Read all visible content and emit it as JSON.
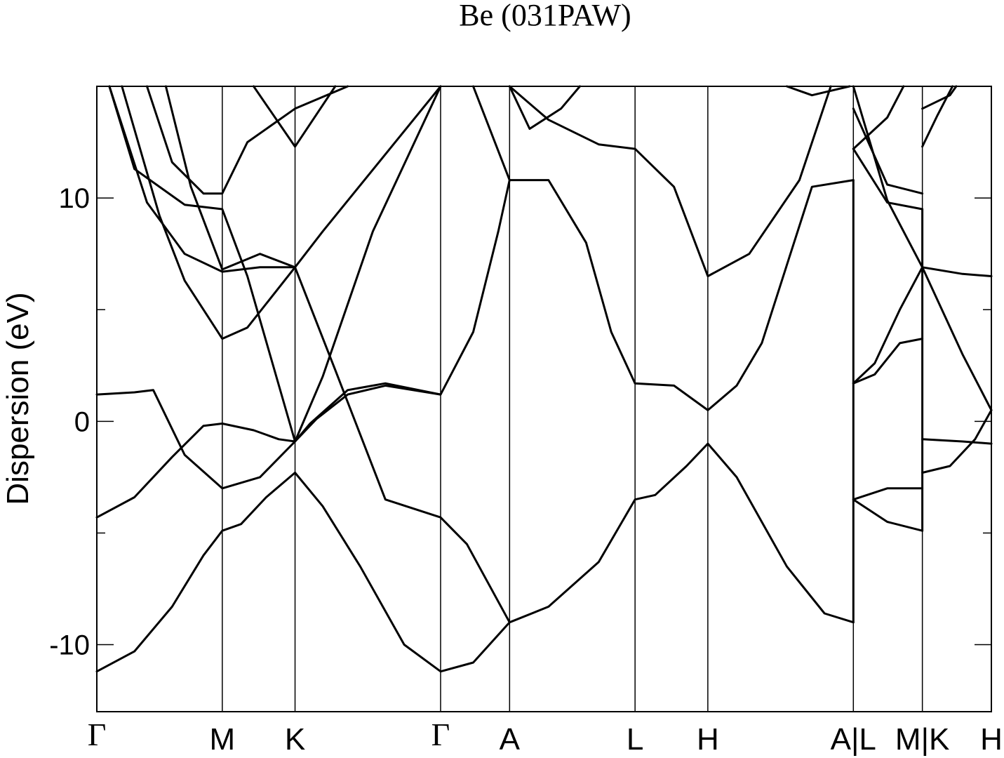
{
  "chart_data": {
    "type": "line",
    "title": "Be (031PAW)",
    "ylabel": "Dispersion (eV)",
    "xlabel": "",
    "ylim": [
      -13,
      15
    ],
    "yticks": [
      -10,
      0,
      10
    ],
    "grid": false,
    "kpoints": [
      {
        "label": "Γ",
        "x": 0
      },
      {
        "label": "M",
        "x": 1.0
      },
      {
        "label": "K",
        "x": 1.58
      },
      {
        "label": "Γ",
        "x": 2.74
      },
      {
        "label": "A",
        "x": 3.29
      },
      {
        "label": "L",
        "x": 4.29
      },
      {
        "label": "H",
        "x": 4.87
      },
      {
        "label": "A|L",
        "x": 6.03
      },
      {
        "label": "M|K",
        "x": 6.58
      },
      {
        "label": "H",
        "x": 7.13
      }
    ],
    "series": [
      {
        "values": [
          [
            0,
            -11.2
          ],
          [
            0.3,
            -10.3
          ],
          [
            0.6,
            -8.3
          ],
          [
            0.85,
            -6.0
          ],
          [
            1.0,
            -4.9
          ],
          [
            1.15,
            -4.6
          ],
          [
            1.35,
            -3.4
          ],
          [
            1.58,
            -2.3
          ],
          [
            1.8,
            -3.8
          ],
          [
            2.1,
            -6.5
          ],
          [
            2.45,
            -10.0
          ],
          [
            2.74,
            -11.2
          ],
          [
            3.0,
            -10.8
          ],
          [
            3.29,
            -9.0
          ],
          [
            3.6,
            -8.3
          ],
          [
            4.0,
            -6.3
          ],
          [
            4.29,
            -3.5
          ],
          [
            4.45,
            -3.3
          ],
          [
            4.7,
            -2.0
          ],
          [
            4.87,
            -1.0
          ],
          [
            5.1,
            -2.5
          ],
          [
            5.5,
            -6.5
          ],
          [
            5.8,
            -8.6
          ],
          [
            6.03,
            -9.0
          ]
        ]
      },
      {
        "values": [
          [
            0,
            -4.3
          ],
          [
            0.3,
            -3.4
          ],
          [
            0.6,
            -1.6
          ],
          [
            0.85,
            -0.2
          ],
          [
            1.0,
            -0.1
          ],
          [
            1.25,
            -0.4
          ],
          [
            1.45,
            -0.8
          ],
          [
            1.58,
            -0.9
          ],
          [
            1.75,
            0.1
          ],
          [
            2.0,
            1.2
          ],
          [
            2.3,
            1.6
          ],
          [
            2.74,
            1.2
          ],
          [
            3.0,
            4.0
          ],
          [
            3.2,
            8.5
          ],
          [
            3.29,
            10.8
          ],
          [
            3.6,
            10.8
          ],
          [
            3.9,
            8.0
          ],
          [
            4.1,
            4.0
          ],
          [
            4.29,
            1.7
          ],
          [
            4.6,
            1.6
          ],
          [
            4.87,
            0.5
          ],
          [
            5.1,
            1.6
          ],
          [
            5.3,
            3.5
          ],
          [
            5.5,
            7.0
          ],
          [
            5.7,
            10.5
          ],
          [
            6.03,
            10.8
          ]
        ]
      },
      {
        "values": [
          [
            0,
            1.2
          ],
          [
            0.3,
            1.3
          ],
          [
            0.45,
            1.4
          ],
          [
            0.7,
            -1.5
          ],
          [
            1.0,
            -3.0
          ],
          [
            1.3,
            -2.5
          ],
          [
            1.58,
            -0.9
          ],
          [
            1.7,
            -0.1
          ],
          [
            2.0,
            1.4
          ],
          [
            2.3,
            1.7
          ],
          [
            2.74,
            1.2
          ]
        ]
      },
      {
        "values": [
          [
            0.1,
            15
          ],
          [
            0.4,
            9.8
          ],
          [
            0.7,
            7.5
          ],
          [
            1.0,
            6.7
          ],
          [
            1.3,
            6.9
          ],
          [
            1.58,
            6.9
          ]
        ]
      },
      {
        "values": [
          [
            0.4,
            15
          ],
          [
            0.6,
            11.6
          ],
          [
            0.85,
            10.2
          ],
          [
            1.0,
            10.2
          ],
          [
            1.2,
            12.5
          ],
          [
            1.58,
            14.0
          ],
          [
            2.0,
            15
          ]
        ]
      },
      {
        "values": [
          [
            0.1,
            15
          ],
          [
            0.3,
            11.3
          ],
          [
            0.7,
            9.7
          ],
          [
            1.0,
            9.5
          ],
          [
            1.2,
            6.5
          ],
          [
            1.58,
            -0.9
          ],
          [
            1.8,
            2.0
          ],
          [
            2.2,
            8.5
          ],
          [
            2.74,
            15
          ]
        ]
      },
      {
        "values": [
          [
            0.55,
            15
          ],
          [
            0.75,
            10.5
          ],
          [
            1.0,
            6.8
          ],
          [
            1.3,
            7.5
          ],
          [
            1.58,
            6.9
          ],
          [
            1.9,
            2.3
          ],
          [
            2.3,
            -3.5
          ],
          [
            2.74,
            -4.3
          ],
          [
            2.95,
            -5.5
          ],
          [
            3.29,
            -9.0
          ]
        ]
      },
      {
        "values": [
          [
            0.2,
            15
          ],
          [
            0.5,
            9.2
          ],
          [
            0.7,
            6.3
          ],
          [
            1.0,
            3.7
          ],
          [
            1.2,
            4.2
          ],
          [
            1.58,
            6.9
          ],
          [
            1.8,
            8.5
          ],
          [
            2.74,
            15
          ]
        ]
      },
      {
        "values": [
          [
            1.25,
            15
          ],
          [
            1.58,
            12.3
          ],
          [
            1.9,
            15
          ]
        ]
      },
      {
        "values": [
          [
            3.0,
            15
          ],
          [
            3.29,
            10.8
          ]
        ]
      },
      {
        "values": [
          [
            3.29,
            15
          ],
          [
            3.45,
            13.1
          ],
          [
            3.7,
            14.0
          ],
          [
            3.85,
            15
          ]
        ]
      },
      {
        "values": [
          [
            3.29,
            15
          ],
          [
            3.6,
            13.5
          ],
          [
            4.0,
            12.4
          ],
          [
            4.29,
            12.2
          ],
          [
            4.6,
            10.5
          ],
          [
            4.87,
            6.5
          ],
          [
            5.2,
            7.5
          ],
          [
            5.6,
            10.8
          ],
          [
            5.85,
            15
          ]
        ]
      },
      {
        "values": [
          [
            5.5,
            15
          ],
          [
            5.7,
            14.6
          ],
          [
            6.0,
            15
          ]
        ]
      },
      {
        "values": [
          [
            6.03,
            -9.0
          ],
          [
            6.03,
            10.8
          ]
        ]
      },
      {
        "values": [
          [
            6.03,
            1.7
          ],
          [
            6.2,
            2.1
          ],
          [
            6.4,
            3.5
          ],
          [
            6.58,
            3.7
          ]
        ]
      },
      {
        "values": [
          [
            6.03,
            1.7
          ],
          [
            6.2,
            2.6
          ],
          [
            6.4,
            5.0
          ],
          [
            6.58,
            6.9
          ]
        ]
      },
      {
        "values": [
          [
            6.03,
            12.2
          ],
          [
            6.3,
            9.8
          ],
          [
            6.58,
            9.5
          ]
        ]
      },
      {
        "values": [
          [
            6.03,
            12.2
          ],
          [
            6.3,
            13.6
          ],
          [
            6.43,
            15
          ]
        ]
      },
      {
        "values": [
          [
            6.03,
            14.0
          ],
          [
            6.3,
            10.6
          ],
          [
            6.58,
            10.2
          ]
        ]
      },
      {
        "values": [
          [
            6.03,
            15
          ],
          [
            6.3,
            9.9
          ],
          [
            6.58,
            6.9
          ]
        ]
      },
      {
        "values": [
          [
            6.03,
            -3.5
          ],
          [
            6.3,
            -4.5
          ],
          [
            6.58,
            -4.9
          ]
        ]
      },
      {
        "values": [
          [
            6.03,
            -3.5
          ],
          [
            6.3,
            -3.0
          ],
          [
            6.58,
            -3.0
          ]
        ]
      },
      {
        "values": [
          [
            6.58,
            -4.9
          ],
          [
            6.58,
            9.5
          ]
        ]
      },
      {
        "values": [
          [
            6.58,
            6.9
          ],
          [
            6.9,
            6.6
          ],
          [
            7.13,
            6.5
          ]
        ]
      },
      {
        "values": [
          [
            6.58,
            -2.3
          ],
          [
            6.8,
            -2.0
          ],
          [
            7.0,
            -0.8
          ],
          [
            7.13,
            0.5
          ]
        ]
      },
      {
        "values": [
          [
            6.58,
            -0.8
          ],
          [
            6.9,
            -0.9
          ],
          [
            7.13,
            -1.0
          ]
        ]
      },
      {
        "values": [
          [
            6.58,
            6.9
          ],
          [
            6.9,
            3.0
          ],
          [
            7.13,
            0.5
          ]
        ]
      },
      {
        "values": [
          [
            6.58,
            12.3
          ],
          [
            6.7,
            13.7
          ],
          [
            6.82,
            15
          ]
        ]
      },
      {
        "values": [
          [
            6.58,
            14.0
          ],
          [
            6.8,
            14.6
          ],
          [
            6.85,
            15
          ]
        ]
      }
    ]
  }
}
